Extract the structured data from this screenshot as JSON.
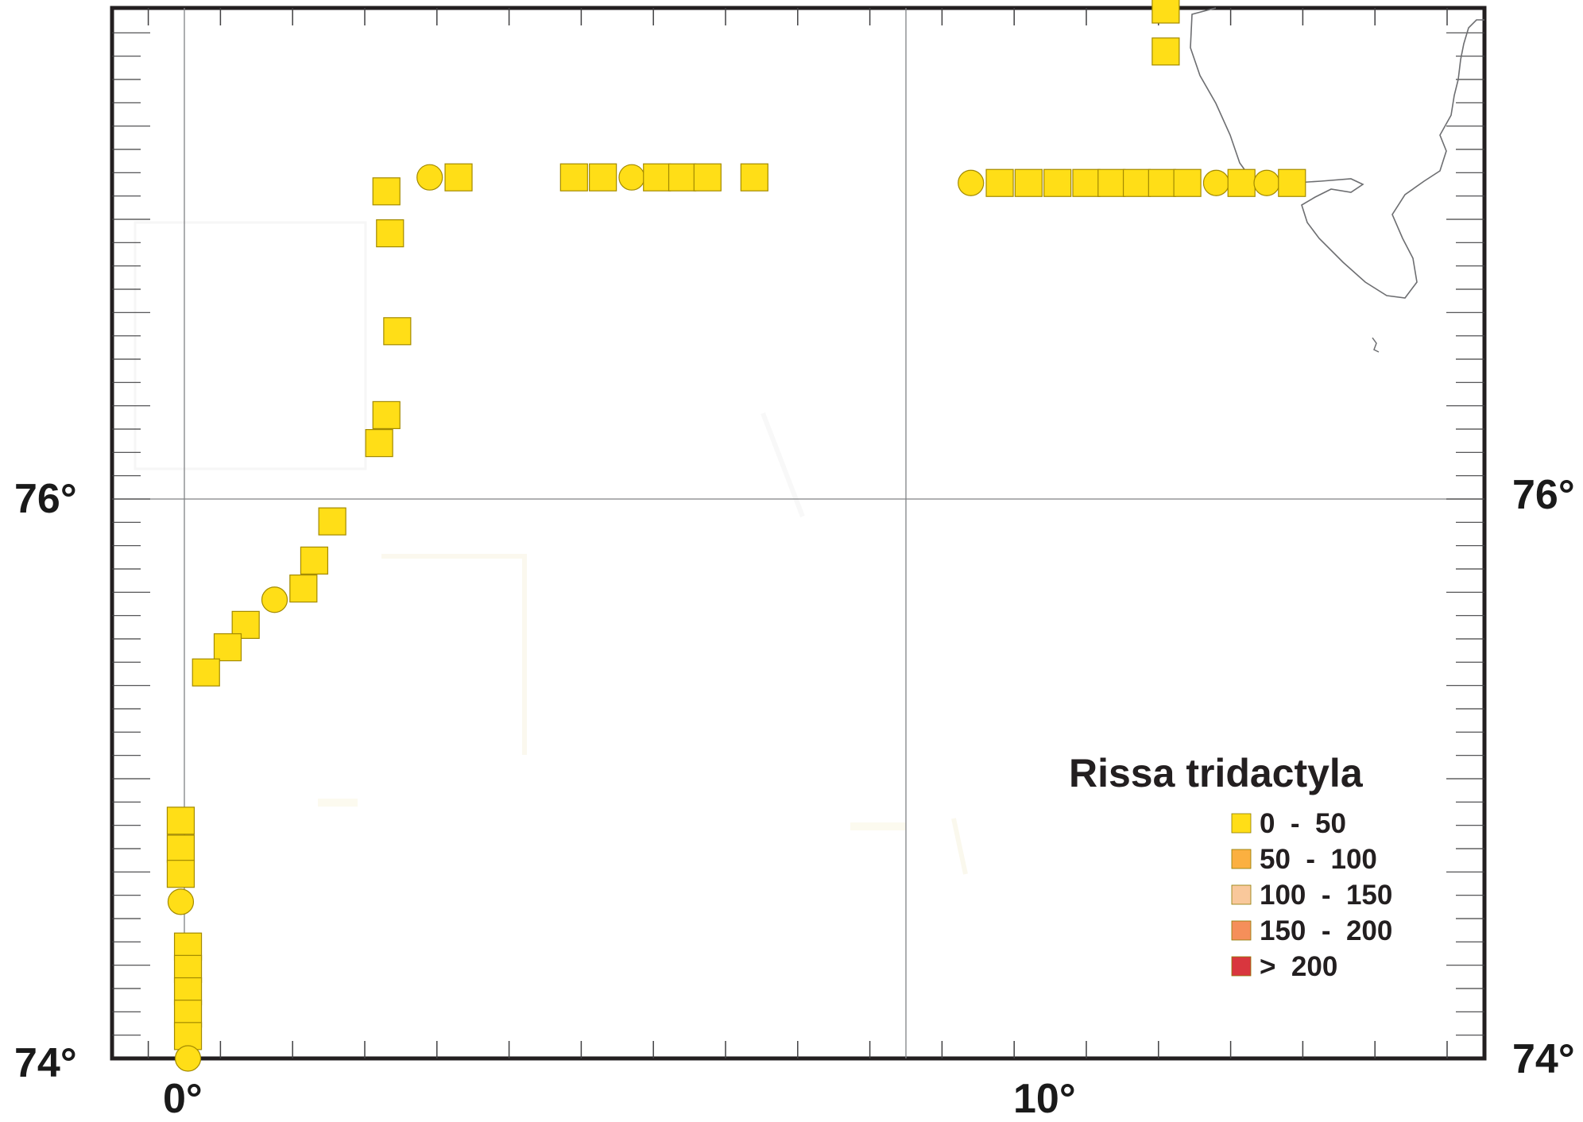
{
  "labels": {
    "lat_upper_left": "76°",
    "lat_upper_right": "76°",
    "lat_lower_left": "74°",
    "lat_lower_right": "74°",
    "lon_0": "0°",
    "lon_10": "10°"
  },
  "legend": {
    "title": "Rissa tridactyla",
    "classes": [
      {
        "label": "0  -  50",
        "color": "#ffde17"
      },
      {
        "label": "50  -  100",
        "color": "#fbb040"
      },
      {
        "label": "100  -  150",
        "color": "#f9c89b"
      },
      {
        "label": "150  -  200",
        "color": "#f58f5a"
      },
      {
        "label": ">  200",
        "color": "#d9363e"
      }
    ]
  },
  "observations": [
    {
      "lon": 13.6,
      "lat": 77.75,
      "shape": "square",
      "class": 0
    },
    {
      "lon": 13.6,
      "lat": 77.6,
      "shape": "square",
      "class": 0
    },
    {
      "lon": 3.4,
      "lat": 77.15,
      "shape": "circle",
      "class": 0
    },
    {
      "lon": 3.8,
      "lat": 77.15,
      "shape": "square",
      "class": 0
    },
    {
      "lon": 5.4,
      "lat": 77.15,
      "shape": "square",
      "class": 0
    },
    {
      "lon": 5.8,
      "lat": 77.15,
      "shape": "square",
      "class": 0
    },
    {
      "lon": 6.2,
      "lat": 77.15,
      "shape": "circle",
      "class": 0
    },
    {
      "lon": 6.55,
      "lat": 77.15,
      "shape": "square",
      "class": 0
    },
    {
      "lon": 6.9,
      "lat": 77.15,
      "shape": "square",
      "class": 0
    },
    {
      "lon": 7.25,
      "lat": 77.15,
      "shape": "square",
      "class": 0
    },
    {
      "lon": 7.9,
      "lat": 77.15,
      "shape": "square",
      "class": 0
    },
    {
      "lon": 10.9,
      "lat": 77.13,
      "shape": "circle",
      "class": 0
    },
    {
      "lon": 11.3,
      "lat": 77.13,
      "shape": "square",
      "class": 0
    },
    {
      "lon": 11.7,
      "lat": 77.13,
      "shape": "square",
      "class": 0
    },
    {
      "lon": 12.1,
      "lat": 77.13,
      "shape": "square",
      "class": 0
    },
    {
      "lon": 12.5,
      "lat": 77.13,
      "shape": "square",
      "class": 0
    },
    {
      "lon": 12.85,
      "lat": 77.13,
      "shape": "square",
      "class": 0
    },
    {
      "lon": 13.2,
      "lat": 77.13,
      "shape": "square",
      "class": 0
    },
    {
      "lon": 13.55,
      "lat": 77.13,
      "shape": "square",
      "class": 0
    },
    {
      "lon": 13.9,
      "lat": 77.13,
      "shape": "square",
      "class": 0
    },
    {
      "lon": 14.3,
      "lat": 77.13,
      "shape": "circle",
      "class": 0
    },
    {
      "lon": 14.65,
      "lat": 77.13,
      "shape": "square",
      "class": 0
    },
    {
      "lon": 15.0,
      "lat": 77.13,
      "shape": "circle",
      "class": 0
    },
    {
      "lon": 15.35,
      "lat": 77.13,
      "shape": "square",
      "class": 0
    },
    {
      "lon": 2.8,
      "lat": 77.1,
      "shape": "square",
      "class": 0
    },
    {
      "lon": 2.85,
      "lat": 76.95,
      "shape": "square",
      "class": 0
    },
    {
      "lon": 2.95,
      "lat": 76.6,
      "shape": "square",
      "class": 0
    },
    {
      "lon": 2.8,
      "lat": 76.3,
      "shape": "square",
      "class": 0
    },
    {
      "lon": 2.7,
      "lat": 76.2,
      "shape": "square",
      "class": 0
    },
    {
      "lon": 2.05,
      "lat": 75.92,
      "shape": "square",
      "class": 0
    },
    {
      "lon": 1.8,
      "lat": 75.78,
      "shape": "square",
      "class": 0
    },
    {
      "lon": 1.65,
      "lat": 75.68,
      "shape": "square",
      "class": 0
    },
    {
      "lon": 1.25,
      "lat": 75.64,
      "shape": "circle",
      "class": 0
    },
    {
      "lon": 0.85,
      "lat": 75.55,
      "shape": "square",
      "class": 0
    },
    {
      "lon": 0.6,
      "lat": 75.47,
      "shape": "square",
      "class": 0
    },
    {
      "lon": 0.3,
      "lat": 75.38,
      "shape": "square",
      "class": 0
    },
    {
      "lon": -0.05,
      "lat": 74.85,
      "shape": "square",
      "class": 0
    },
    {
      "lon": -0.05,
      "lat": 74.75,
      "shape": "square",
      "class": 0
    },
    {
      "lon": -0.05,
      "lat": 74.66,
      "shape": "square",
      "class": 0
    },
    {
      "lon": -0.05,
      "lat": 74.56,
      "shape": "circle",
      "class": 0
    },
    {
      "lon": 0.05,
      "lat": 74.4,
      "shape": "square",
      "class": 0
    },
    {
      "lon": 0.05,
      "lat": 74.32,
      "shape": "square",
      "class": 0
    },
    {
      "lon": 0.05,
      "lat": 74.24,
      "shape": "square",
      "class": 0
    },
    {
      "lon": 0.05,
      "lat": 74.16,
      "shape": "square",
      "class": 0
    },
    {
      "lon": 0.05,
      "lat": 74.08,
      "shape": "square",
      "class": 0
    },
    {
      "lon": 0.05,
      "lat": 74.0,
      "shape": "circle",
      "class": 0
    }
  ]
}
